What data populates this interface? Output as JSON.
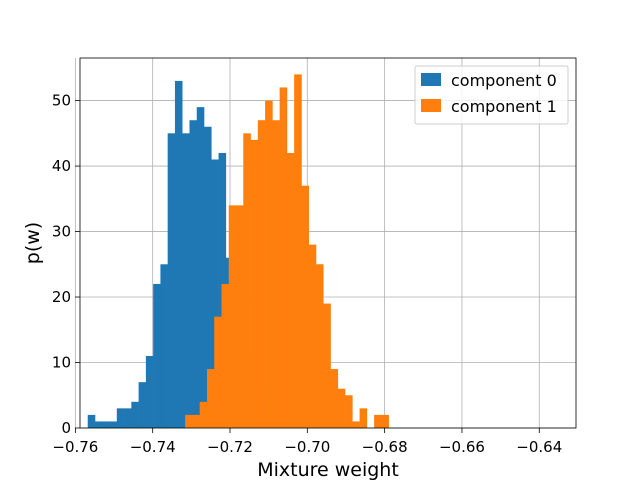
{
  "chart_data": {
    "type": "histogram",
    "xlabel": "Mixture weight",
    "ylabel": "p(w)",
    "xlim": [
      -0.7588,
      -0.6305
    ],
    "ylim": [
      0,
      56.5
    ],
    "xticks": [
      -0.76,
      -0.74,
      -0.72,
      -0.7,
      -0.68,
      -0.66,
      -0.64
    ],
    "xtick_labels": [
      "−0.76",
      "−0.74",
      "−0.72",
      "−0.70",
      "−0.68",
      "−0.66",
      "−0.64"
    ],
    "yticks": [
      0,
      10,
      20,
      30,
      40,
      50
    ],
    "ytick_labels": [
      "0",
      "10",
      "20",
      "30",
      "40",
      "50"
    ],
    "grid": true,
    "legend_position": "top-right",
    "series": [
      {
        "name": "component 0",
        "color": "#1f77b4",
        "bin_start": -0.7568,
        "bin_width": 0.00188,
        "values": [
          2,
          1,
          1,
          1,
          3,
          3,
          4,
          7,
          11,
          22,
          25,
          45,
          53,
          45,
          47,
          49,
          46,
          41,
          42,
          26,
          21,
          15,
          11,
          8,
          6,
          3,
          2,
          2
        ]
      },
      {
        "name": "component 1",
        "color": "#ff7f0e",
        "bin_start": -0.7316,
        "bin_width": 0.00188,
        "values": [
          2,
          2,
          4,
          9,
          17,
          22,
          34,
          34,
          45,
          44,
          47,
          50,
          47,
          52,
          42,
          54,
          37,
          28,
          25,
          19,
          9,
          6,
          5,
          1,
          3,
          0,
          2,
          2
        ]
      }
    ]
  }
}
